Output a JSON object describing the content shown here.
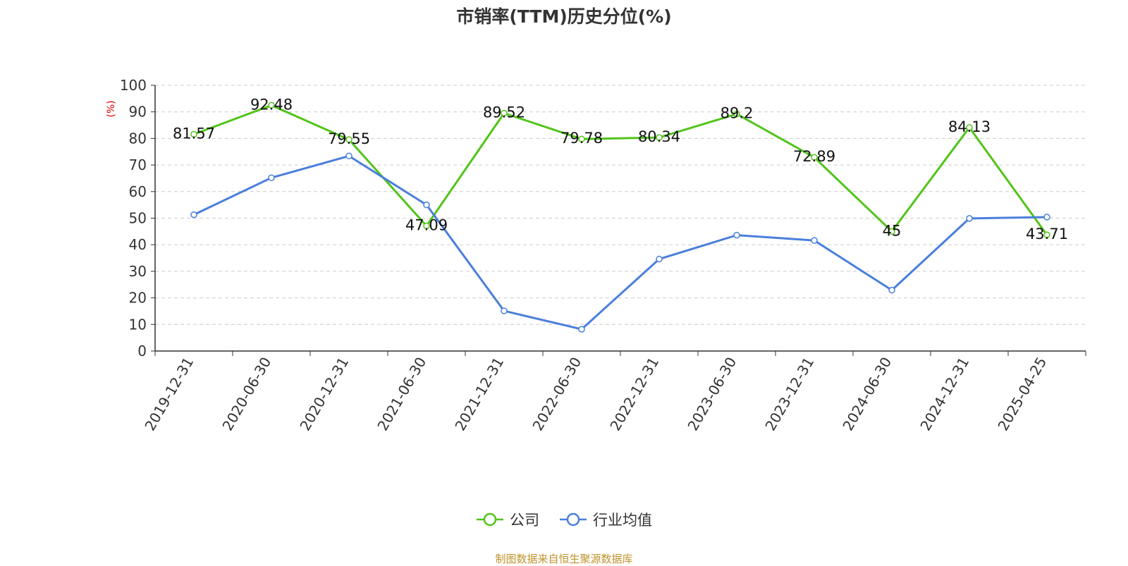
{
  "chart_data": {
    "type": "line",
    "title": "市销率(TTM)历史分位(%)",
    "ylabel": "(%)",
    "ylim": [
      0,
      100
    ],
    "yticks": [
      0,
      10,
      20,
      30,
      40,
      50,
      60,
      70,
      80,
      90,
      100
    ],
    "grid": true,
    "legend_position": "bottom",
    "categories": [
      "2019-12-31",
      "2020-06-30",
      "2020-12-31",
      "2021-06-30",
      "2021-12-31",
      "2022-06-30",
      "2022-12-31",
      "2023-06-30",
      "2023-12-31",
      "2024-06-30",
      "2024-12-31",
      "2025-04-25"
    ],
    "series": [
      {
        "name": "公司",
        "color": "#52c41a",
        "values": [
          81.57,
          92.48,
          79.55,
          47.09,
          89.52,
          79.78,
          80.34,
          89.2,
          72.89,
          45,
          84.13,
          43.71
        ],
        "data_labels": [
          "81.57",
          "92.48",
          "79.55",
          "47.09",
          "89.52",
          "79.78",
          "80.34",
          "89.2",
          "72.89",
          "45",
          "84.13",
          "43.71"
        ]
      },
      {
        "name": "行业均值",
        "color": "#4a7fdb",
        "values": [
          51.3,
          65.2,
          73.4,
          55.0,
          15.1,
          8.2,
          34.6,
          43.6,
          41.6,
          22.9,
          49.9,
          50.4
        ]
      }
    ],
    "source": "制图数据来自恒生聚源数据库"
  }
}
